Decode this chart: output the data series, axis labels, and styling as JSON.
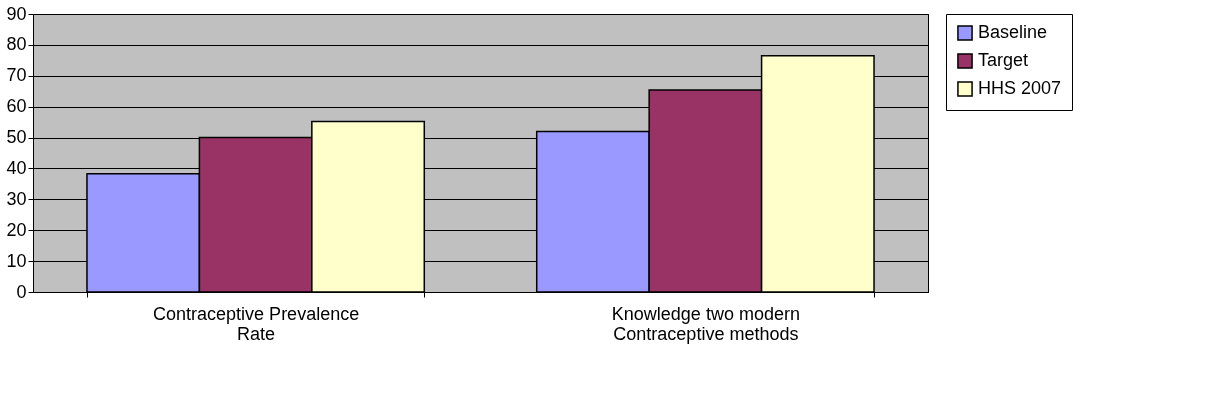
{
  "chart_data": {
    "type": "bar",
    "categories": [
      "Contraceptive Prevalence Rate",
      "Knowledge two modern Contraceptive methods"
    ],
    "series": [
      {
        "name": "Baseline",
        "color": "#9999ff",
        "values": [
          38.3,
          52
        ]
      },
      {
        "name": "Target",
        "color": "#993366",
        "values": [
          50,
          65.4
        ]
      },
      {
        "name": "HHS 2007",
        "color": "#ffffcc",
        "values": [
          55.2,
          76.5
        ]
      }
    ],
    "ylim": [
      0,
      90
    ],
    "yticks": [
      0,
      10,
      20,
      30,
      40,
      50,
      60,
      70,
      80,
      90
    ],
    "grid": "y",
    "legend": "right"
  }
}
